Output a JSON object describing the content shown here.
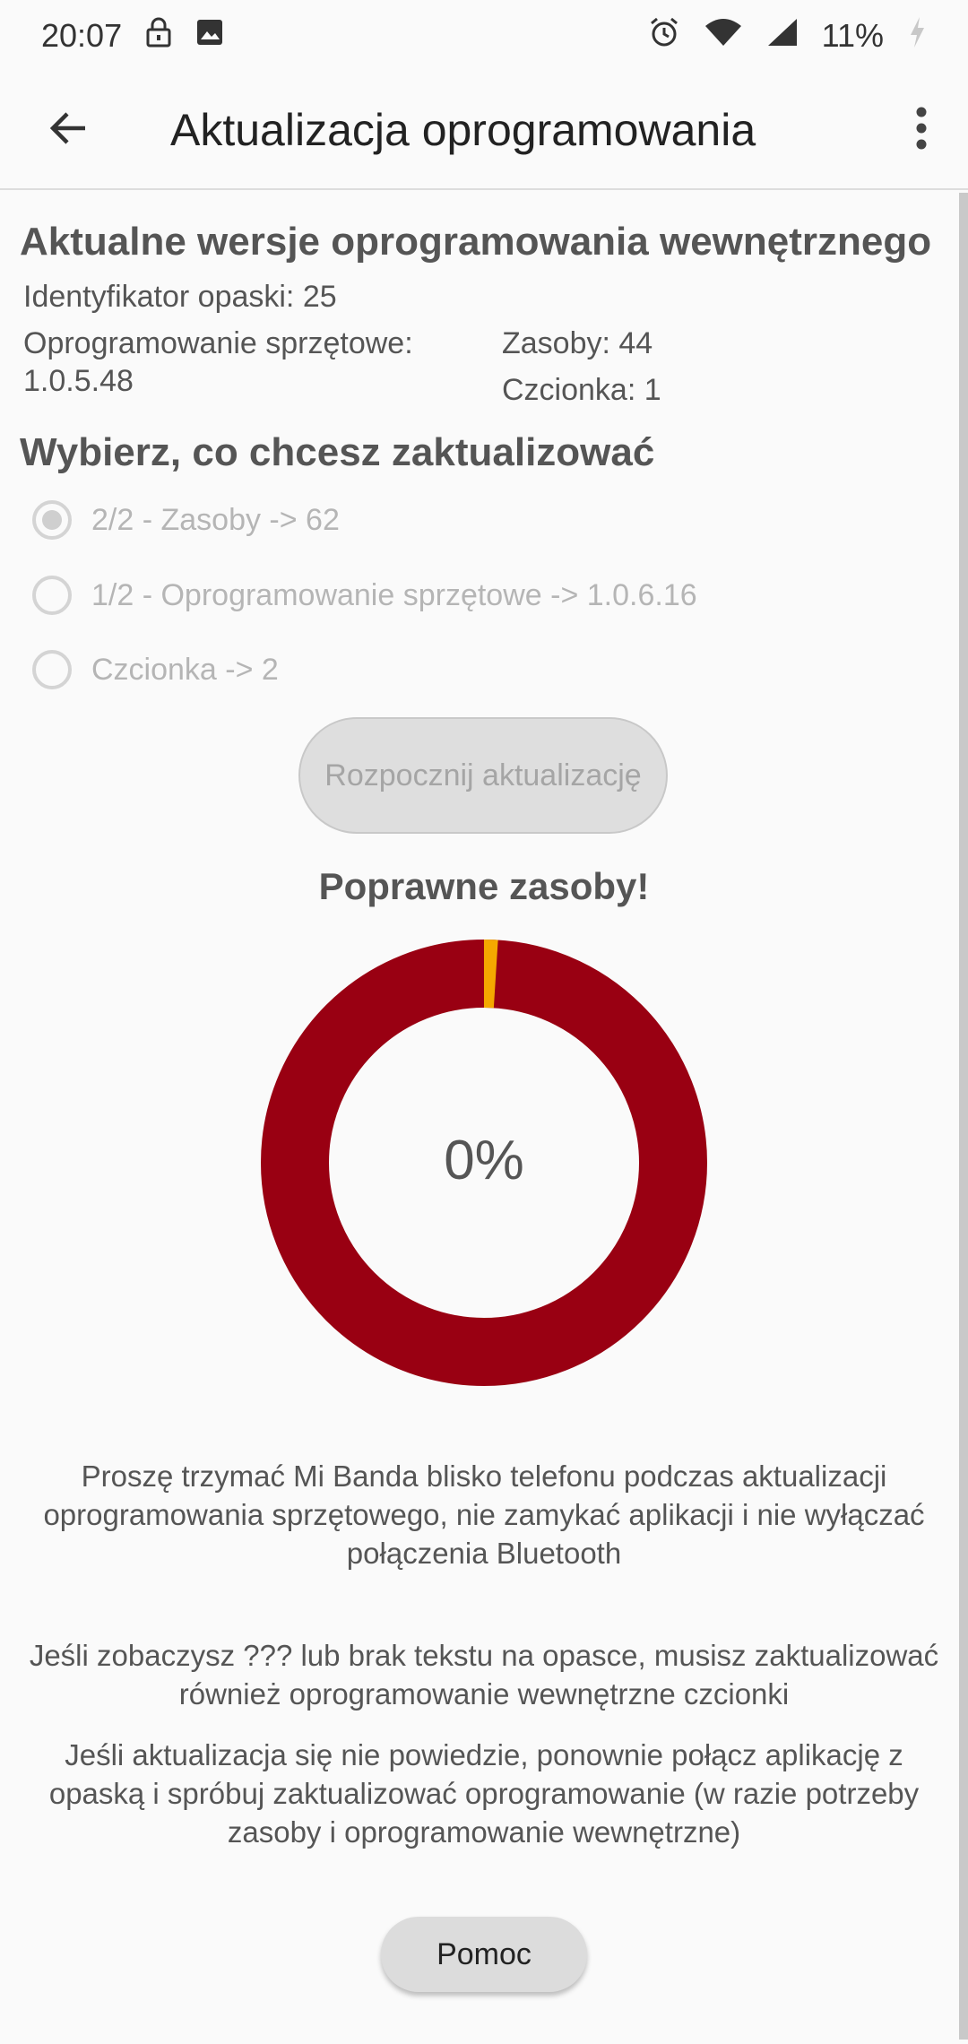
{
  "status_bar": {
    "time": "20:07",
    "battery": "11%",
    "icons": [
      "lock-icon",
      "image-icon",
      "alarm-icon",
      "wifi-icon",
      "signal-icon",
      "battery-charging-icon"
    ]
  },
  "app_bar": {
    "title": "Aktualizacja oprogramowania",
    "back_icon": "arrow-left-icon",
    "menu_icon": "more-vertical-icon"
  },
  "current_versions": {
    "title": "Aktualne wersje oprogramowania wewnętrznego",
    "band_id": "Identyfikator opaski: 25",
    "firmware_label": "Oprogramowanie sprzętowe:",
    "firmware_value": "1.0.5.48",
    "resources": "Zasoby: 44",
    "font": "Czcionka: 1"
  },
  "choose": {
    "title": "Wybierz, co chcesz zaktualizować",
    "options": [
      {
        "label": "2/2 - Zasoby -> 62",
        "checked": true
      },
      {
        "label": "1/2 - Oprogramowanie sprzętowe -> 1.0.6.16",
        "checked": false
      },
      {
        "label": "Czcionka -> 2",
        "checked": false
      }
    ]
  },
  "start_button": "Rozpocznij aktualizację",
  "status_title": "Poprawne zasoby!",
  "progress": {
    "percent_label": "0%",
    "value": 0.01,
    "ring_color": "#990012",
    "indicator_color": "#f5a800"
  },
  "notes": [
    "Proszę trzymać Mi Banda blisko telefonu podczas aktualizacji oprogramowania sprzętowego, nie zamykać aplikacji i nie wyłączać połączenia Bluetooth",
    "Jeśli zobaczysz ??? lub brak tekstu na opasce, musisz zaktualizować również oprogramowanie wewnętrzne czcionki",
    "Jeśli aktualizacja się nie powiedzie, ponownie połącz aplikację z opaską i spróbuj zaktualizować oprogramowanie (w razie potrzeby zasoby i oprogramowanie wewnętrzne)"
  ],
  "help_button": "Pomoc"
}
